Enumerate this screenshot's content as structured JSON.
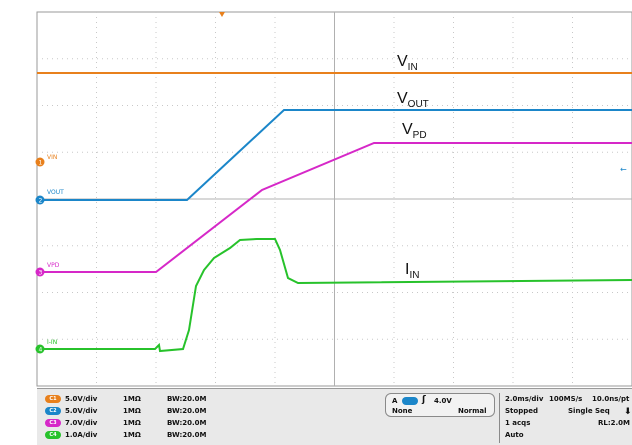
{
  "screen": {
    "labels": {
      "vin": {
        "main": "V",
        "sub": "IN"
      },
      "vout": {
        "main": "V",
        "sub": "OUT"
      },
      "vpd": {
        "main": "V",
        "sub": "PD"
      },
      "iin": {
        "main": "I",
        "sub": "IN"
      }
    },
    "markers": [
      {
        "num": "1",
        "name": "VIN",
        "color": "#e8801c"
      },
      {
        "num": "2",
        "name": "VOUT",
        "color": "#1b86c9"
      },
      {
        "num": "3",
        "name": "VPD",
        "color": "#d628c8"
      },
      {
        "num": "4",
        "name": "I-IN",
        "color": "#27c22b"
      }
    ]
  },
  "channels": [
    {
      "badge": "C1",
      "scale": "5.0V/div",
      "impedance": "1MΩ",
      "bw": "BW:20.0M",
      "color": "#e8801c"
    },
    {
      "badge": "C2",
      "scale": "5.0V/div",
      "impedance": "1MΩ",
      "bw": "BW:20.0M",
      "color": "#1b86c9"
    },
    {
      "badge": "C3",
      "scale": "7.0V/div",
      "impedance": "1MΩ",
      "bw": "BW:20.0M",
      "color": "#d628c8"
    },
    {
      "badge": "C4",
      "scale": "1.0A/div",
      "impedance": "1MΩ",
      "bw": "BW:20.0M",
      "color": "#27c22b"
    }
  ],
  "trigger": {
    "source_label": "A",
    "edge_symbol": "ʃ",
    "level": "4.0V",
    "coupling": "None",
    "mode": "Normal"
  },
  "acquisition": {
    "timebase": "2.0ms/div",
    "sample_rate": "100MS/s",
    "resolution": "10.0ns/pt",
    "state": "Stopped",
    "sequence": "Single Seq",
    "acqs": "1 acqs",
    "record_length": "RL:2.0M",
    "auto": "Auto"
  },
  "colors": {
    "vin": "#e8801c",
    "vout": "#1b86c9",
    "vpd": "#d628c8",
    "iin": "#27c22b",
    "grid": "#c8c8c8",
    "frame": "#9a9a9a"
  }
}
